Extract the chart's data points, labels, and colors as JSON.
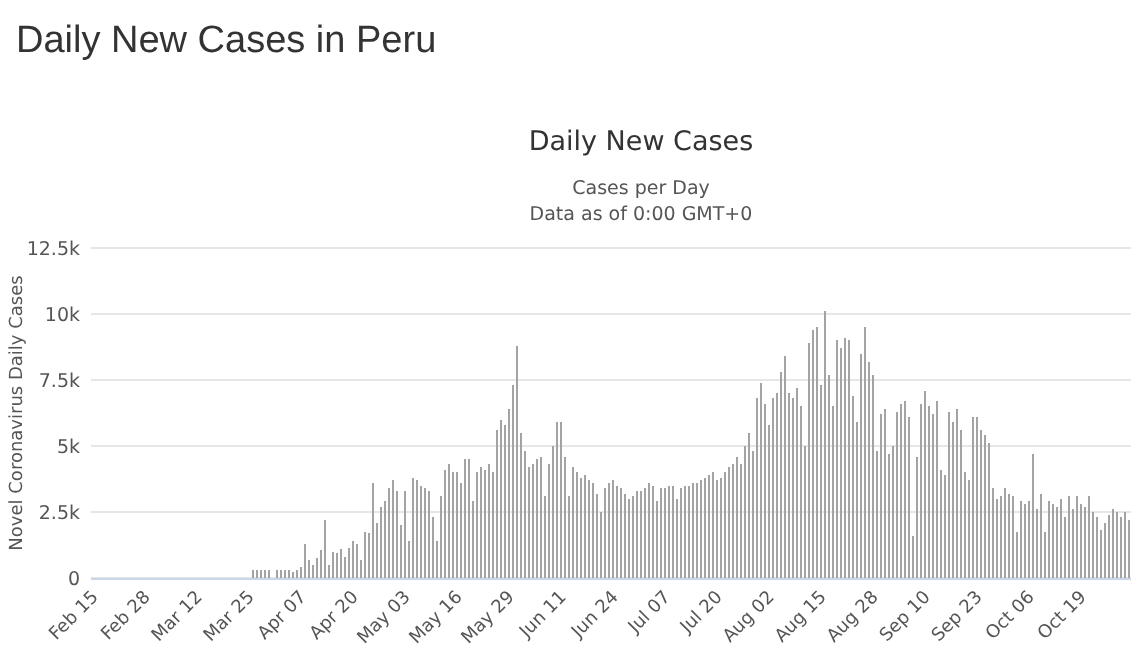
{
  "chart_data": {
    "type": "bar",
    "title": "Daily New Cases in Peru",
    "subtitle": "Daily New Cases",
    "annotations": [
      "Cases per Day",
      "Data as of 0:00 GMT+0"
    ],
    "ylabel": "Novel Coronavirus Daily Cases",
    "categories": [
      "Feb 15",
      null,
      null,
      null,
      null,
      null,
      null,
      null,
      null,
      null,
      null,
      null,
      null,
      "Feb 28",
      null,
      null,
      null,
      null,
      null,
      null,
      null,
      null,
      null,
      null,
      null,
      null,
      "Mar 12",
      null,
      null,
      null,
      null,
      null,
      null,
      null,
      null,
      null,
      null,
      null,
      null,
      "Mar 25",
      null,
      null,
      null,
      null,
      null,
      null,
      null,
      null,
      null,
      null,
      null,
      null,
      "Apr 07",
      null,
      null,
      null,
      null,
      null,
      null,
      null,
      null,
      null,
      null,
      null,
      null,
      "Apr 20",
      null,
      null,
      null,
      null,
      null,
      null,
      null,
      null,
      null,
      null,
      null,
      null,
      "May 03",
      null,
      null,
      null,
      null,
      null,
      null,
      null,
      null,
      null,
      null,
      null,
      null,
      "May 16",
      null,
      null,
      null,
      null,
      null,
      null,
      null,
      null,
      null,
      null,
      null,
      null,
      "May 29",
      null,
      null,
      null,
      null,
      null,
      null,
      null,
      null,
      null,
      null,
      null,
      null,
      "Jun 11",
      null,
      null,
      null,
      null,
      null,
      null,
      null,
      null,
      null,
      null,
      null,
      null,
      "Jun 24",
      null,
      null,
      null,
      null,
      null,
      null,
      null,
      null,
      null,
      null,
      null,
      null,
      "Jul 07",
      null,
      null,
      null,
      null,
      null,
      null,
      null,
      null,
      null,
      null,
      null,
      null,
      "Jul 20",
      null,
      null,
      null,
      null,
      null,
      null,
      null,
      null,
      null,
      null,
      null,
      null,
      "Aug 02",
      null,
      null,
      null,
      null,
      null,
      null,
      null,
      null,
      null,
      null,
      null,
      null,
      "Aug 15",
      null,
      null,
      null,
      null,
      null,
      null,
      null,
      null,
      null,
      null,
      null,
      null,
      "Aug 28",
      null,
      null,
      null,
      null,
      null,
      null,
      null,
      null,
      null,
      null,
      null,
      null,
      "Sep 10",
      null,
      null,
      null,
      null,
      null,
      null,
      null,
      null,
      null,
      null,
      null,
      null,
      "Sep 23",
      null,
      null,
      null,
      null,
      null,
      null,
      null,
      null,
      null,
      null,
      null,
      null,
      "Oct 06",
      null,
      null,
      null,
      null,
      null,
      null,
      null,
      null,
      null,
      null,
      null,
      null,
      "Oct 19",
      null,
      null,
      null,
      null,
      null,
      null,
      null,
      null,
      null,
      null,
      null,
      null
    ],
    "values": [
      0,
      0,
      0,
      0,
      0,
      0,
      0,
      0,
      0,
      0,
      0,
      0,
      0,
      0,
      0,
      0,
      0,
      0,
      0,
      0,
      0,
      0,
      0,
      0,
      0,
      0,
      0,
      0,
      0,
      0,
      0,
      0,
      0,
      0,
      0,
      0,
      0,
      0,
      0,
      0,
      300,
      300,
      300,
      300,
      300,
      0,
      300,
      300,
      300,
      300,
      240,
      300,
      420,
      1300,
      700,
      500,
      740,
      1050,
      2200,
      500,
      1000,
      950,
      1100,
      800,
      1150,
      1400,
      1300,
      700,
      1750,
      1700,
      3600,
      2100,
      2700,
      2900,
      3400,
      3700,
      3300,
      2000,
      3300,
      1400,
      3800,
      3700,
      3500,
      3400,
      3300,
      2300,
      1400,
      3100,
      4100,
      4300,
      4000,
      4000,
      3600,
      4500,
      4500,
      2900,
      4000,
      4200,
      4100,
      4300,
      4000,
      5600,
      6000,
      5800,
      6400,
      7300,
      8800,
      5500,
      4800,
      4200,
      4300,
      4500,
      4600,
      3100,
      4300,
      5000,
      5900,
      5900,
      4600,
      3100,
      4200,
      4000,
      3800,
      3900,
      3700,
      3600,
      3200,
      2500,
      3400,
      3600,
      3700,
      3500,
      3400,
      3200,
      3000,
      3100,
      3300,
      3300,
      3400,
      3600,
      3500,
      2900,
      3400,
      3400,
      3500,
      3500,
      3000,
      3400,
      3500,
      3500,
      3600,
      3600,
      3700,
      3800,
      3900,
      4000,
      3700,
      3800,
      4000,
      4200,
      4300,
      4600,
      4300,
      5000,
      5500,
      4800,
      6800,
      7400,
      6600,
      5800,
      6800,
      7000,
      7800,
      8400,
      7000,
      6800,
      7200,
      6500,
      5000,
      8900,
      9400,
      9500,
      7300,
      10100,
      7700,
      6500,
      9000,
      8700,
      9100,
      9000,
      6900,
      5900,
      8500,
      9500,
      8200,
      7700,
      4800,
      6200,
      6400,
      4700,
      5000,
      6300,
      6600,
      6700,
      6100,
      1600,
      4600,
      6600,
      7100,
      6500,
      6200,
      6700,
      4100,
      3900,
      6300,
      5900,
      6400,
      5600,
      4000,
      3700,
      6100,
      6100,
      5600,
      5400,
      5100,
      3400,
      3000,
      3100,
      3400,
      3200,
      3100,
      1750,
      2900,
      2800,
      2900,
      4700,
      2600,
      3200,
      1750,
      2900,
      2800,
      2700,
      3000,
      2300,
      3100,
      2600,
      3100,
      2800,
      2700,
      3100,
      2500,
      2300,
      1800,
      2100,
      2400,
      2600,
      2500,
      2300,
      2500,
      2200
    ],
    "color": "#a3a3a3",
    "ylim": [
      0,
      12500
    ],
    "yticks": [
      0,
      {
        "value": 2500,
        "label": "2.5k"
      },
      {
        "value": 5000,
        "label": "5k"
      },
      {
        "value": 7500,
        "label": "7.5k"
      },
      {
        "value": 10000,
        "label": "10k"
      },
      {
        "value": 12500,
        "label": "12.5k"
      }
    ],
    "grid": "y"
  }
}
